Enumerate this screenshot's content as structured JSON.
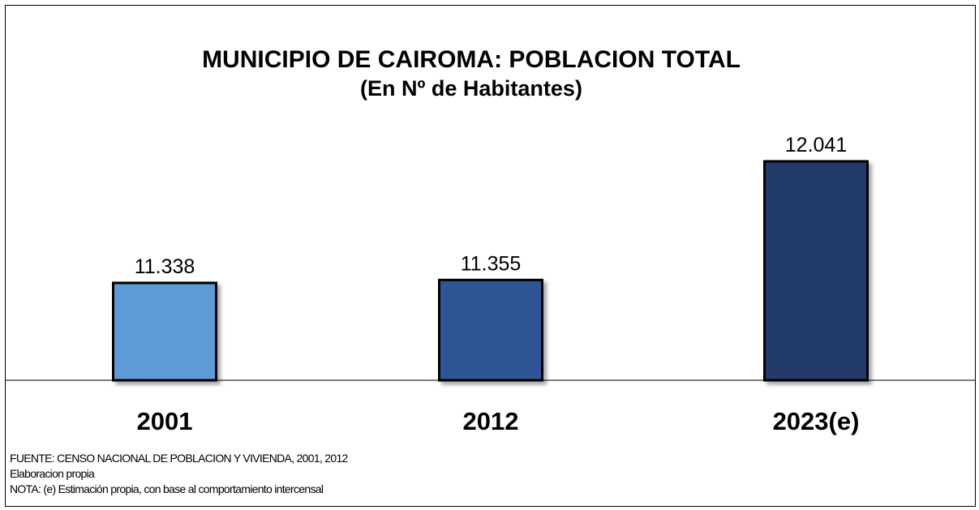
{
  "chart_data": {
    "type": "bar",
    "title": "MUNICIPIO DE CAIROMA: POBLACION TOTAL",
    "subtitle": "(En Nº de Habitantes)",
    "categories": [
      "2001",
      "2012",
      "2023(e)"
    ],
    "values": [
      11338,
      11355,
      12041
    ],
    "value_labels": [
      "11.338",
      "11.355",
      "12.041"
    ],
    "colors": [
      "#5b9bd5",
      "#2e5496",
      "#243a6b"
    ],
    "grid": false,
    "legend": "none",
    "axis_visible": false
  },
  "footnotes": {
    "source": "FUENTE: CENSO NACIONAL DE POBLACION Y VIVIENDA, 2001, 2012",
    "author": "Elaboracion propia",
    "note": "NOTA: (e) Estimación propia, con base al comportamiento intercensal"
  }
}
